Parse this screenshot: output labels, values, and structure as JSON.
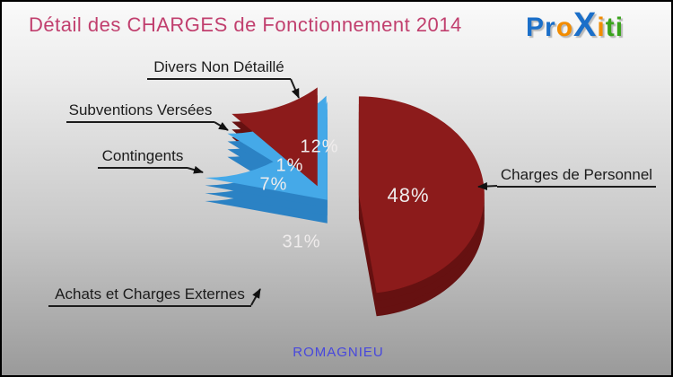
{
  "header": {
    "title": "Détail des CHARGES de Fonctionnement 2014",
    "logo": {
      "text": "Proxiti",
      "letters": [
        {
          "ch": "P",
          "color": "#1b6fc9"
        },
        {
          "ch": "r",
          "color": "#1b6fc9"
        },
        {
          "ch": "o",
          "color": "#f28c00"
        },
        {
          "ch": "X",
          "color": "#1b6fc9"
        },
        {
          "ch": "i",
          "color": "#f28c00"
        },
        {
          "ch": "t",
          "color": "#3aa31c"
        },
        {
          "ch": "i",
          "color": "#3aa31c"
        }
      ]
    }
  },
  "chart_data": {
    "type": "pie",
    "style": "3d-exploded",
    "title": "Détail des CHARGES de Fonctionnement 2014",
    "labels": [
      "Charges de Personnel",
      "Achats et Charges Externes",
      "Contingents",
      "Subventions Versées",
      "Divers Non Détaillé"
    ],
    "values": [
      48,
      31,
      7,
      1,
      12
    ],
    "display_percents": [
      "48%",
      "31%",
      "7%",
      "1%",
      "12%"
    ],
    "unit": "%",
    "start_angle_deg": 0,
    "direction": "clockwise",
    "colors": [
      {
        "top": "#8c1b1b",
        "side": "#661111"
      },
      {
        "top": "#45a9e8",
        "side": "#2b82c4"
      },
      {
        "top": "#45a9e8",
        "side": "#2b82c4"
      },
      {
        "top": "#8c1b1b",
        "side": "#661111"
      },
      {
        "top": "#45a9e8",
        "side": "#2b82c4"
      }
    ],
    "legend_position": "callouts",
    "grid": false
  },
  "footer": {
    "town": "ROMAGNIEU"
  },
  "theme": {
    "title_color": "#c13f6e",
    "label_color": "#1c1c1c",
    "percent_color": "#efecec",
    "town_color": "#4747dd",
    "background_top": "#fafafa",
    "background_bottom": "#9a9a9a"
  }
}
